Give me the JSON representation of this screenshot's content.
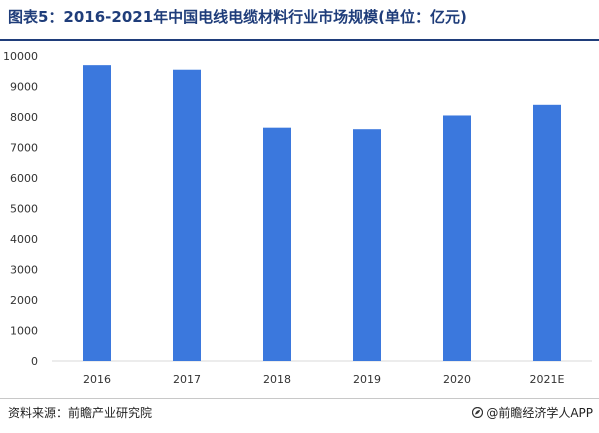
{
  "header": {
    "title": "图表5：2016-2021年中国电线电缆材料行业市场规模(单位：亿元)"
  },
  "footer": {
    "source": "资料来源：前瞻产业研究院",
    "brand": "@前瞻经济学人APP",
    "brand_icon": "leaf-logo-icon"
  },
  "colors": {
    "bar": "#3b78dd",
    "title": "#1f3d7a",
    "axis": "#d9d9d9",
    "tick": "#333333"
  },
  "chart_data": {
    "type": "bar",
    "title": "图表5：2016-2021年中国电线电缆材料行业市场规模(单位：亿元)",
    "xlabel": "",
    "ylabel": "",
    "categories": [
      "2016",
      "2017",
      "2018",
      "2019",
      "2020",
      "2021E"
    ],
    "values": [
      9700,
      9550,
      7650,
      7600,
      8050,
      8400
    ],
    "ylim": [
      0,
      10000
    ],
    "yticks": [
      0,
      1000,
      2000,
      3000,
      4000,
      5000,
      6000,
      7000,
      8000,
      9000,
      10000
    ],
    "grid": false,
    "legend": "none"
  }
}
